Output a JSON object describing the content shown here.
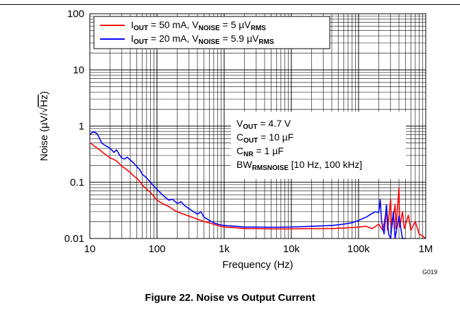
{
  "caption": "Figure 22. Noise vs Output Current",
  "chart_data": {
    "type": "line",
    "xscale": "log",
    "yscale": "log",
    "xlim": [
      10,
      1000000
    ],
    "ylim": [
      0.01,
      100
    ],
    "grid": true,
    "xlabel": "Frequency (Hz)",
    "ylabel": {
      "pre": "Noise (",
      "unit_mu": "µ",
      "unit_v": "V/",
      "unit_root": "Hz",
      "post": ")"
    },
    "x_ticks": [
      {
        "v": 10,
        "label": "10"
      },
      {
        "v": 100,
        "label": "100"
      },
      {
        "v": 1000,
        "label": "1k"
      },
      {
        "v": 10000,
        "label": "10k"
      },
      {
        "v": 100000,
        "label": "100k"
      },
      {
        "v": 1000000,
        "label": "1M"
      }
    ],
    "y_ticks": [
      {
        "v": 0.01,
        "label": "0.01"
      },
      {
        "v": 0.1,
        "label": "0.1"
      },
      {
        "v": 1,
        "label": "1"
      },
      {
        "v": 10,
        "label": "10"
      },
      {
        "v": 100,
        "label": "100"
      }
    ],
    "code": "G019",
    "legend": {
      "placement": "top-left",
      "entries": [
        {
          "color": "#ff0000",
          "i": "I",
          "i_sub": "OUT",
          "i_val": " = 50 mA, V",
          "v_sub": "NOISE",
          "v_val": " = 5 µV",
          "v_sub2": "RMS"
        },
        {
          "color": "#0000ff",
          "i": "I",
          "i_sub": "OUT",
          "i_val": " = 20 mA, V",
          "v_sub": "NOISE",
          "v_val": " = 5.9 µV",
          "v_sub2": "RMS"
        }
      ]
    },
    "conditions": [
      {
        "main": "V",
        "sub": "OUT",
        "rest": " = 4.7 V"
      },
      {
        "main": "C",
        "sub": "OUT",
        "rest": " = 10 µF"
      },
      {
        "main": "C",
        "sub": "NR",
        "rest": " = 1 µF"
      },
      {
        "main": "BW",
        "sub": "RMSNOISE",
        "rest": " [10 Hz, 100 kHz]"
      }
    ],
    "series": [
      {
        "name": "IOUT = 50 mA",
        "color": "#ff0000",
        "points": [
          [
            10,
            0.5
          ],
          [
            11,
            0.47
          ],
          [
            12,
            0.43
          ],
          [
            14,
            0.38
          ],
          [
            16,
            0.33
          ],
          [
            18,
            0.3
          ],
          [
            20,
            0.27
          ],
          [
            22,
            0.26
          ],
          [
            25,
            0.24
          ],
          [
            28,
            0.21
          ],
          [
            30,
            0.19
          ],
          [
            33,
            0.18
          ],
          [
            36,
            0.165
          ],
          [
            40,
            0.15
          ],
          [
            45,
            0.13
          ],
          [
            50,
            0.118
          ],
          [
            55,
            0.105
          ],
          [
            60,
            0.09
          ],
          [
            70,
            0.076
          ],
          [
            80,
            0.066
          ],
          [
            90,
            0.056
          ],
          [
            100,
            0.048
          ],
          [
            120,
            0.042
          ],
          [
            150,
            0.037
          ],
          [
            180,
            0.032
          ],
          [
            200,
            0.03
          ],
          [
            250,
            0.027
          ],
          [
            300,
            0.025
          ],
          [
            400,
            0.022
          ],
          [
            500,
            0.02
          ],
          [
            600,
            0.019
          ],
          [
            800,
            0.017
          ],
          [
            1000,
            0.016
          ],
          [
            1500,
            0.0155
          ],
          [
            2000,
            0.015
          ],
          [
            3000,
            0.015
          ],
          [
            5000,
            0.0148
          ],
          [
            10000,
            0.0148
          ],
          [
            20000,
            0.015
          ],
          [
            40000,
            0.015
          ],
          [
            70000,
            0.0155
          ],
          [
            100000,
            0.016
          ],
          [
            130000,
            0.0165
          ],
          [
            160000,
            0.015
          ],
          [
            200000,
            0.018
          ],
          [
            230000,
            0.014
          ],
          [
            260000,
            0.032
          ],
          [
            270000,
            0.014
          ],
          [
            300000,
            0.05
          ],
          [
            310000,
            0.015
          ],
          [
            350000,
            0.04
          ],
          [
            360000,
            0.015
          ],
          [
            400000,
            0.078
          ],
          [
            410000,
            0.016
          ],
          [
            450000,
            0.03
          ],
          [
            480000,
            0.015
          ],
          [
            550000,
            0.026
          ],
          [
            600000,
            0.014
          ],
          [
            700000,
            0.02
          ],
          [
            800000,
            0.012
          ],
          [
            900000,
            0.011
          ],
          [
            1000000,
            0.01
          ]
        ]
      },
      {
        "name": "IOUT = 20 mA",
        "color": "#0000ff",
        "points": [
          [
            10,
            0.7
          ],
          [
            11,
            0.78
          ],
          [
            12,
            0.77
          ],
          [
            13,
            0.72
          ],
          [
            14,
            0.6
          ],
          [
            15,
            0.5
          ],
          [
            17,
            0.45
          ],
          [
            19,
            0.42
          ],
          [
            21,
            0.38
          ],
          [
            23,
            0.34
          ],
          [
            25,
            0.38
          ],
          [
            28,
            0.3
          ],
          [
            30,
            0.27
          ],
          [
            33,
            0.26
          ],
          [
            36,
            0.28
          ],
          [
            40,
            0.25
          ],
          [
            45,
            0.22
          ],
          [
            50,
            0.19
          ],
          [
            55,
            0.17
          ],
          [
            60,
            0.14
          ],
          [
            70,
            0.12
          ],
          [
            80,
            0.1
          ],
          [
            90,
            0.085
          ],
          [
            100,
            0.075
          ],
          [
            120,
            0.06
          ],
          [
            150,
            0.048
          ],
          [
            170,
            0.05
          ],
          [
            200,
            0.042
          ],
          [
            230,
            0.045
          ],
          [
            260,
            0.038
          ],
          [
            300,
            0.034
          ],
          [
            350,
            0.03
          ],
          [
            400,
            0.027
          ],
          [
            450,
            0.03
          ],
          [
            500,
            0.024
          ],
          [
            600,
            0.021
          ],
          [
            700,
            0.019
          ],
          [
            800,
            0.018
          ],
          [
            1000,
            0.017
          ],
          [
            1500,
            0.0165
          ],
          [
            2000,
            0.016
          ],
          [
            3000,
            0.016
          ],
          [
            5000,
            0.0158
          ],
          [
            10000,
            0.016
          ],
          [
            20000,
            0.0165
          ],
          [
            40000,
            0.017
          ],
          [
            60000,
            0.018
          ],
          [
            80000,
            0.019
          ],
          [
            100000,
            0.021
          ],
          [
            130000,
            0.024
          ],
          [
            160000,
            0.028
          ],
          [
            180000,
            0.03
          ],
          [
            200000,
            0.029
          ],
          [
            210000,
            0.05
          ],
          [
            220000,
            0.02
          ],
          [
            240000,
            0.012
          ],
          [
            260000,
            0.04
          ],
          [
            280000,
            0.012
          ],
          [
            300000,
            0.01
          ],
          [
            330000,
            0.03
          ],
          [
            350000,
            0.01
          ],
          [
            400000,
            0.025
          ],
          [
            450000,
            0.01
          ],
          [
            500000,
            0.01
          ]
        ]
      }
    ]
  }
}
